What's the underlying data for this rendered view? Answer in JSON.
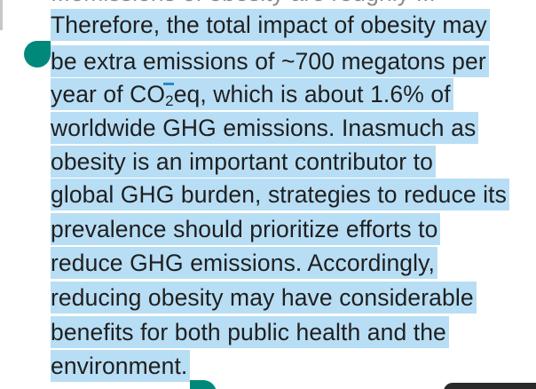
{
  "article": {
    "lines": [
      "...emissions of obesity are roughly ...",
      "Therefore, the total impact of obesity may",
      "be extra emissions of ~700 megatons per",
      {
        "pre": "year of CO",
        "sub": "2",
        "post": "eq, which is about 1.6% of"
      },
      "worldwide GHG emissions. Inasmuch as",
      "obesity is an important contributor to",
      "global GHG burden, strategies to reduce its",
      "prevalence should prioritize efforts to",
      "reduce GHG emissions. Accordingly,",
      "reducing obesity may have considerable",
      "benefits for both public health and the",
      "environment."
    ]
  },
  "selection": {
    "highlight_color": "#b8def5",
    "handle_color": "#00897b"
  }
}
